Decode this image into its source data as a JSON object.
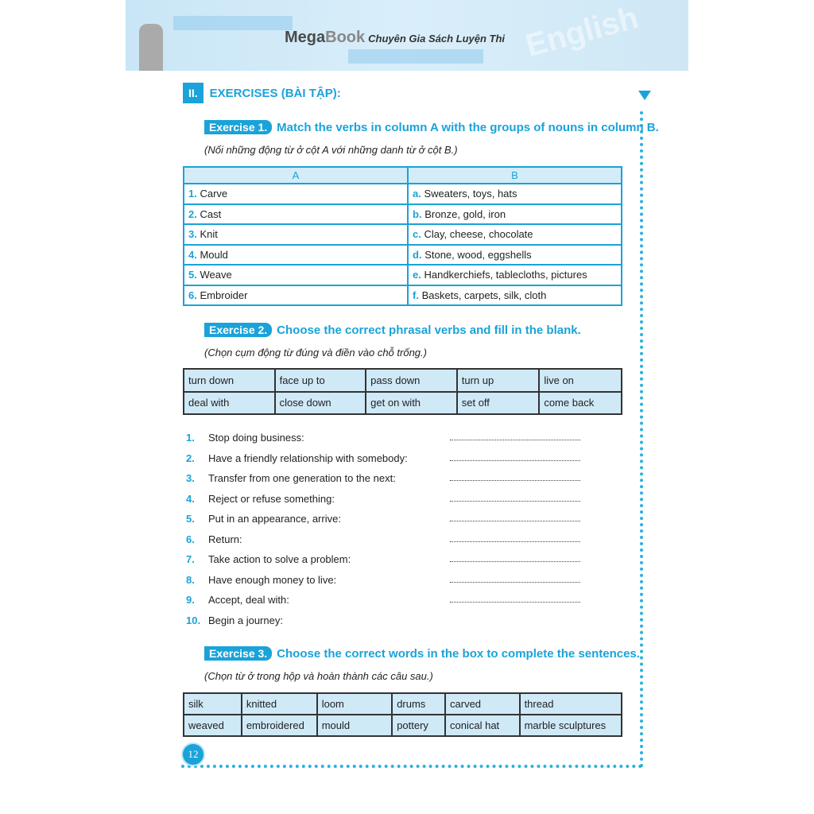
{
  "header": {
    "brand": "MegaBook",
    "brand_a": "Mega",
    "brand_b": "Book",
    "tagline": "Chuyên Gia Sách Luyện Thi",
    "watermark": "English"
  },
  "section": {
    "number": "II.",
    "title": "EXERCISES (BÀI TẬP):"
  },
  "ex1": {
    "tag": "Exercise 1.",
    "title": "Match the verbs in column A with the groups of nouns in column B.",
    "subtitle": "(Nối những động từ ở cột A với những danh từ ở cột B.)",
    "col_a": "A",
    "col_b": "B",
    "rows": [
      [
        "1.",
        "Carve",
        "a.",
        "Sweaters, toys, hats"
      ],
      [
        "2.",
        "Cast",
        "b.",
        "Bronze, gold, iron"
      ],
      [
        "3.",
        "Knit",
        "c.",
        "Clay, cheese, chocolate"
      ],
      [
        "4.",
        "Mould",
        "d.",
        "Stone, wood, eggshells"
      ],
      [
        "5.",
        "Weave",
        "e.",
        "Handkerchiefs, tablecloths, pictures"
      ],
      [
        "6.",
        "Embroider",
        "f.",
        "Baskets, carpets, silk, cloth"
      ]
    ]
  },
  "ex2": {
    "tag": "Exercise 2.",
    "title": "Choose the correct phrasal verbs and fill in the blank.",
    "subtitle": "(Chọn cụm động từ đúng và điền vào chỗ trống.)",
    "box": [
      [
        "turn down",
        "face up to",
        "pass down",
        "turn up",
        "live on"
      ],
      [
        "deal with",
        "close down",
        "get on with",
        "set off",
        "come back"
      ]
    ],
    "items": [
      [
        "1.",
        "Stop doing business:"
      ],
      [
        "2.",
        "Have a friendly relationship with somebody:"
      ],
      [
        "3.",
        "Transfer from one generation to the next:"
      ],
      [
        "4.",
        "Reject or refuse something:"
      ],
      [
        "5.",
        "Put in an appearance, arrive:"
      ],
      [
        "6.",
        "Return:"
      ],
      [
        "7.",
        "Take action to solve a problem:"
      ],
      [
        "8.",
        "Have enough money to live:"
      ],
      [
        "9.",
        "Accept, deal with:"
      ],
      [
        "10.",
        "Begin a journey:"
      ]
    ]
  },
  "ex3": {
    "tag": "Exercise 3.",
    "title": "Choose the correct words in the box to complete the sentences.",
    "subtitle": "(Chọn từ ở trong hộp và hoàn thành các câu sau.)",
    "box": [
      [
        "silk",
        "knitted",
        "loom",
        "drums",
        "carved",
        "thread"
      ],
      [
        "weaved",
        "embroidered",
        "mould",
        "pottery",
        "conical hat",
        "marble sculptures"
      ]
    ]
  },
  "page_number": "12",
  "colors": {
    "accent": "#1aa3d9",
    "box_fill": "#cfe9f7"
  }
}
